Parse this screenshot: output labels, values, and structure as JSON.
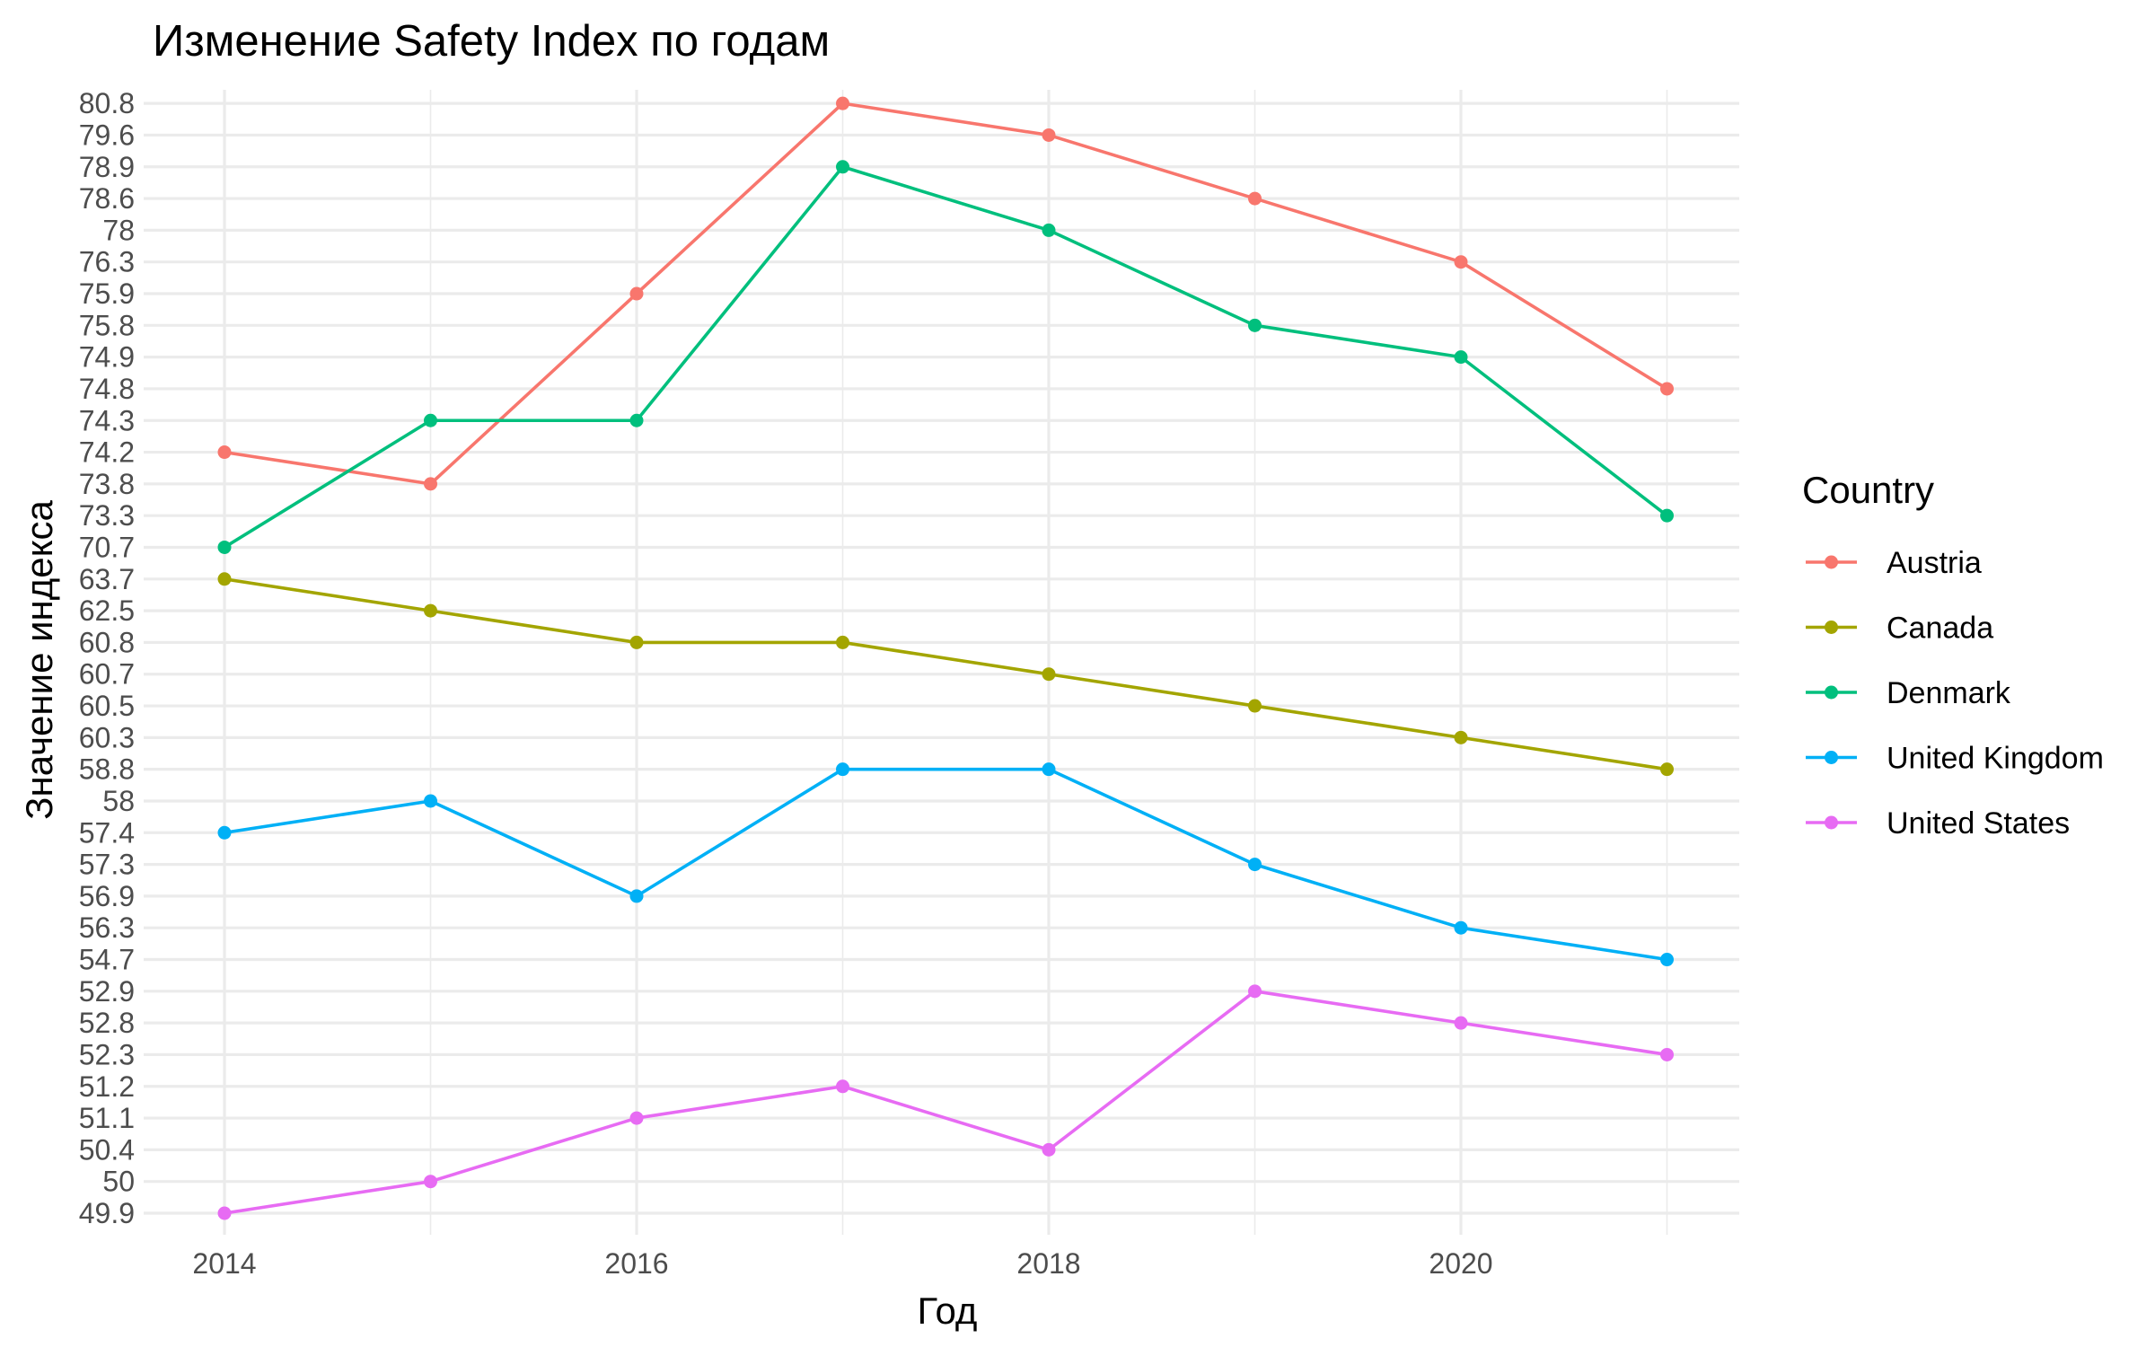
{
  "chart_data": {
    "type": "line",
    "title": "Изменение Safety Index по годам",
    "xlabel": "Год",
    "ylabel": "Значение индекса",
    "y_scale": "discrete",
    "x": [
      2014,
      2015,
      2016,
      2017,
      2018,
      2019,
      2020,
      2021
    ],
    "x_ticks": [
      "2014",
      "2016",
      "2018",
      "2020"
    ],
    "y_ticks": [
      "49.9",
      "50",
      "50.4",
      "51.1",
      "51.2",
      "52.3",
      "52.8",
      "52.9",
      "54.7",
      "56.3",
      "56.9",
      "57.3",
      "57.4",
      "58",
      "58.8",
      "60.3",
      "60.5",
      "60.7",
      "60.8",
      "62.5",
      "63.7",
      "70.7",
      "73.3",
      "73.8",
      "74.2",
      "74.3",
      "74.8",
      "74.9",
      "75.8",
      "75.9",
      "76.3",
      "78",
      "78.6",
      "78.9",
      "79.6",
      "80.8"
    ],
    "legend_title": "Country",
    "legend_position": "right",
    "grid": true,
    "series": [
      {
        "name": "Austria",
        "color": "#F8766D",
        "values": [
          "74.2",
          "73.8",
          "75.9",
          "80.8",
          "79.6",
          "78.6",
          "76.3",
          "74.8"
        ]
      },
      {
        "name": "Canada",
        "color": "#A3A500",
        "values": [
          "63.7",
          "62.5",
          "60.8",
          "60.8",
          "60.7",
          "60.5",
          "60.3",
          "58.8"
        ]
      },
      {
        "name": "Denmark",
        "color": "#00BF7D",
        "values": [
          "70.7",
          "74.3",
          "74.3",
          "78.9",
          "78",
          "75.8",
          "74.9",
          "73.3"
        ]
      },
      {
        "name": "United Kingdom",
        "color": "#00B0F6",
        "values": [
          "57.4",
          "58",
          "56.9",
          "58.8",
          "58.8",
          "57.3",
          "56.3",
          "54.7"
        ]
      },
      {
        "name": "United States",
        "color": "#E76BF3",
        "values": [
          "49.9",
          "50",
          "51.1",
          "51.2",
          "50.4",
          "52.9",
          "52.8",
          "52.3"
        ]
      }
    ]
  }
}
